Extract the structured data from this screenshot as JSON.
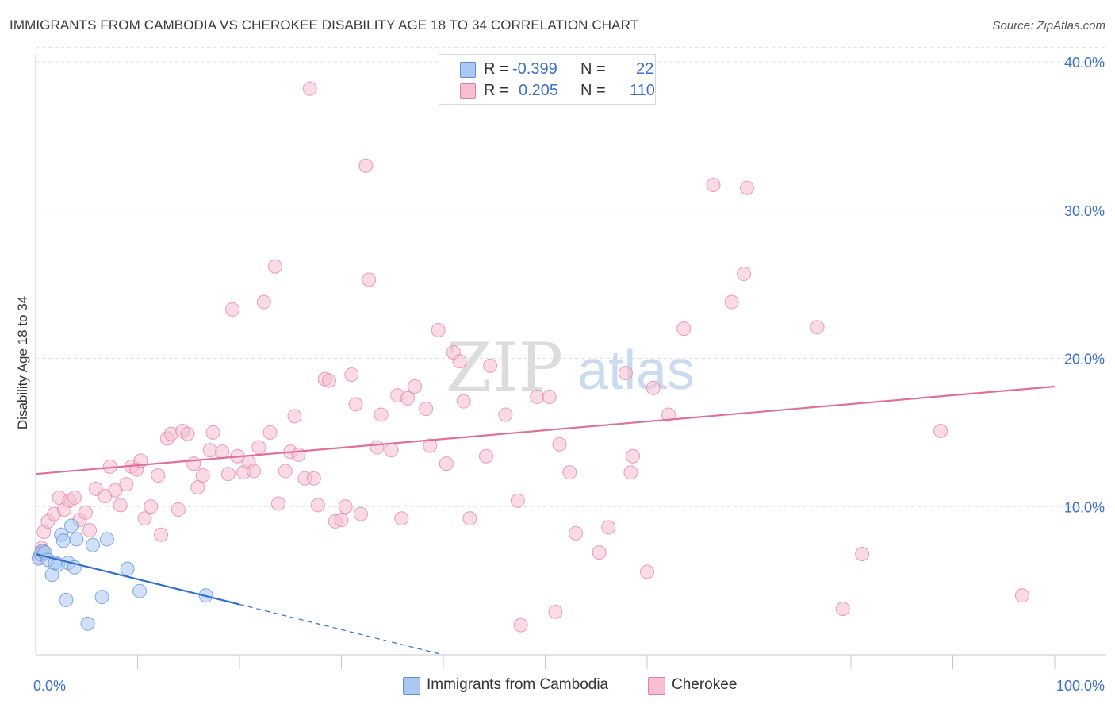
{
  "title": "IMMIGRANTS FROM CAMBODIA VS CHEROKEE DISABILITY AGE 18 TO 34 CORRELATION CHART",
  "source": "Source: ZipAtlas.com",
  "watermark": {
    "zip": "ZIP",
    "atlas": "atlas"
  },
  "legend": {
    "r_label": "R =",
    "n_label": "N =",
    "rows": [
      {
        "name": "Immigrants from Cambodia",
        "r": "-0.399",
        "n": "22",
        "fill": "#aac8f0",
        "stroke": "#5b8fd6"
      },
      {
        "name": "Cherokee",
        "r": "0.205",
        "n": "110",
        "fill": "#f6bed0",
        "stroke": "#e37fa0"
      }
    ]
  },
  "chart_data": {
    "type": "scatter",
    "title": "IMMIGRANTS FROM CAMBODIA VS CHEROKEE DISABILITY AGE 18 TO 34 CORRELATION CHART",
    "xlabel": "",
    "ylabel": "Disability Age 18 to 34",
    "xlim": [
      0,
      100
    ],
    "ylim": [
      0,
      40
    ],
    "x_tick_labels": [
      "0.0%",
      "100.0%"
    ],
    "y_ticks": [
      10,
      20,
      30,
      40
    ],
    "y_tick_labels": [
      "10.0%",
      "20.0%",
      "30.0%",
      "40.0%"
    ],
    "grid": true,
    "series": [
      {
        "name": "Immigrants from Cambodia",
        "color": "#5b8fd6",
        "fill": "#aac8f0",
        "points": [
          [
            0.3,
            6.5
          ],
          [
            0.5,
            6.8
          ],
          [
            0.7,
            7.0
          ],
          [
            0.9,
            6.9
          ],
          [
            1.2,
            6.4
          ],
          [
            1.6,
            5.4
          ],
          [
            1.9,
            6.2
          ],
          [
            2.2,
            6.1
          ],
          [
            2.5,
            8.1
          ],
          [
            2.7,
            7.7
          ],
          [
            3.0,
            3.7
          ],
          [
            3.2,
            6.2
          ],
          [
            3.5,
            8.7
          ],
          [
            3.8,
            5.9
          ],
          [
            4.0,
            7.8
          ],
          [
            5.1,
            2.1
          ],
          [
            5.6,
            7.4
          ],
          [
            6.5,
            3.9
          ],
          [
            7.0,
            7.8
          ],
          [
            9.0,
            5.8
          ],
          [
            10.2,
            4.3
          ],
          [
            16.7,
            4.0
          ]
        ],
        "trend": {
          "x0": 0,
          "y0": 6.8,
          "x1": 20,
          "y1": 3.4,
          "dash_to_x": 40,
          "dash_to_y": 0.0
        }
      },
      {
        "name": "Cherokee",
        "color": "#e37fa0",
        "fill": "#f6bed0",
        "points": [
          [
            0.4,
            6.6
          ],
          [
            0.6,
            7.2
          ],
          [
            0.8,
            8.3
          ],
          [
            1.2,
            9.0
          ],
          [
            1.8,
            9.5
          ],
          [
            2.3,
            10.6
          ],
          [
            2.8,
            9.8
          ],
          [
            3.3,
            10.4
          ],
          [
            3.8,
            10.6
          ],
          [
            4.3,
            9.1
          ],
          [
            4.9,
            9.6
          ],
          [
            5.3,
            8.4
          ],
          [
            5.9,
            11.2
          ],
          [
            6.8,
            10.7
          ],
          [
            7.3,
            12.7
          ],
          [
            7.8,
            11.1
          ],
          [
            8.3,
            10.1
          ],
          [
            8.9,
            11.5
          ],
          [
            9.4,
            12.7
          ],
          [
            9.9,
            12.5
          ],
          [
            10.3,
            13.1
          ],
          [
            10.7,
            9.2
          ],
          [
            11.3,
            10.0
          ],
          [
            12.0,
            12.1
          ],
          [
            12.3,
            8.1
          ],
          [
            12.9,
            14.6
          ],
          [
            13.3,
            14.9
          ],
          [
            14.0,
            9.8
          ],
          [
            14.4,
            15.1
          ],
          [
            14.9,
            14.9
          ],
          [
            15.5,
            12.9
          ],
          [
            15.9,
            11.3
          ],
          [
            16.4,
            12.1
          ],
          [
            17.1,
            13.8
          ],
          [
            17.4,
            15.0
          ],
          [
            18.3,
            13.7
          ],
          [
            18.9,
            12.2
          ],
          [
            19.3,
            23.3
          ],
          [
            19.8,
            13.4
          ],
          [
            20.4,
            12.3
          ],
          [
            20.9,
            13.0
          ],
          [
            21.4,
            12.4
          ],
          [
            21.9,
            14.0
          ],
          [
            22.4,
            23.8
          ],
          [
            23.0,
            15.0
          ],
          [
            23.5,
            26.2
          ],
          [
            23.8,
            10.2
          ],
          [
            24.5,
            12.4
          ],
          [
            25.0,
            13.7
          ],
          [
            25.4,
            16.1
          ],
          [
            25.8,
            13.5
          ],
          [
            26.4,
            11.9
          ],
          [
            26.9,
            38.2
          ],
          [
            27.3,
            11.9
          ],
          [
            27.7,
            10.1
          ],
          [
            28.4,
            18.6
          ],
          [
            28.8,
            18.5
          ],
          [
            29.4,
            9.0
          ],
          [
            30.0,
            9.1
          ],
          [
            30.4,
            10.0
          ],
          [
            31.0,
            18.9
          ],
          [
            31.4,
            16.9
          ],
          [
            31.9,
            9.5
          ],
          [
            32.4,
            33.0
          ],
          [
            32.7,
            25.3
          ],
          [
            33.5,
            14.0
          ],
          [
            33.9,
            16.2
          ],
          [
            34.9,
            13.8
          ],
          [
            35.5,
            17.5
          ],
          [
            35.9,
            9.2
          ],
          [
            36.5,
            17.3
          ],
          [
            37.2,
            18.1
          ],
          [
            38.3,
            16.6
          ],
          [
            38.7,
            14.1
          ],
          [
            39.5,
            21.9
          ],
          [
            40.3,
            12.9
          ],
          [
            41.0,
            20.4
          ],
          [
            41.6,
            19.8
          ],
          [
            42.0,
            17.1
          ],
          [
            42.6,
            9.2
          ],
          [
            44.2,
            13.4
          ],
          [
            44.6,
            19.5
          ],
          [
            46.1,
            16.2
          ],
          [
            47.3,
            10.4
          ],
          [
            47.6,
            2.0
          ],
          [
            49.2,
            17.4
          ],
          [
            50.4,
            17.4
          ],
          [
            51.0,
            2.9
          ],
          [
            51.4,
            14.2
          ],
          [
            52.4,
            12.3
          ],
          [
            53.0,
            8.2
          ],
          [
            55.3,
            6.9
          ],
          [
            56.2,
            8.6
          ],
          [
            57.9,
            19.0
          ],
          [
            58.4,
            12.3
          ],
          [
            58.6,
            13.4
          ],
          [
            60.0,
            5.6
          ],
          [
            60.6,
            18.0
          ],
          [
            62.1,
            16.2
          ],
          [
            63.6,
            22.0
          ],
          [
            66.5,
            31.7
          ],
          [
            68.3,
            23.8
          ],
          [
            69.5,
            25.7
          ],
          [
            69.8,
            31.5
          ],
          [
            76.7,
            22.1
          ],
          [
            79.2,
            3.1
          ],
          [
            81.1,
            6.8
          ],
          [
            88.8,
            15.1
          ],
          [
            96.8,
            4.0
          ],
          [
            0.7,
            7.0
          ]
        ],
        "trend": {
          "x0": 0,
          "y0": 12.2,
          "x1": 100,
          "y1": 18.1
        }
      }
    ]
  }
}
